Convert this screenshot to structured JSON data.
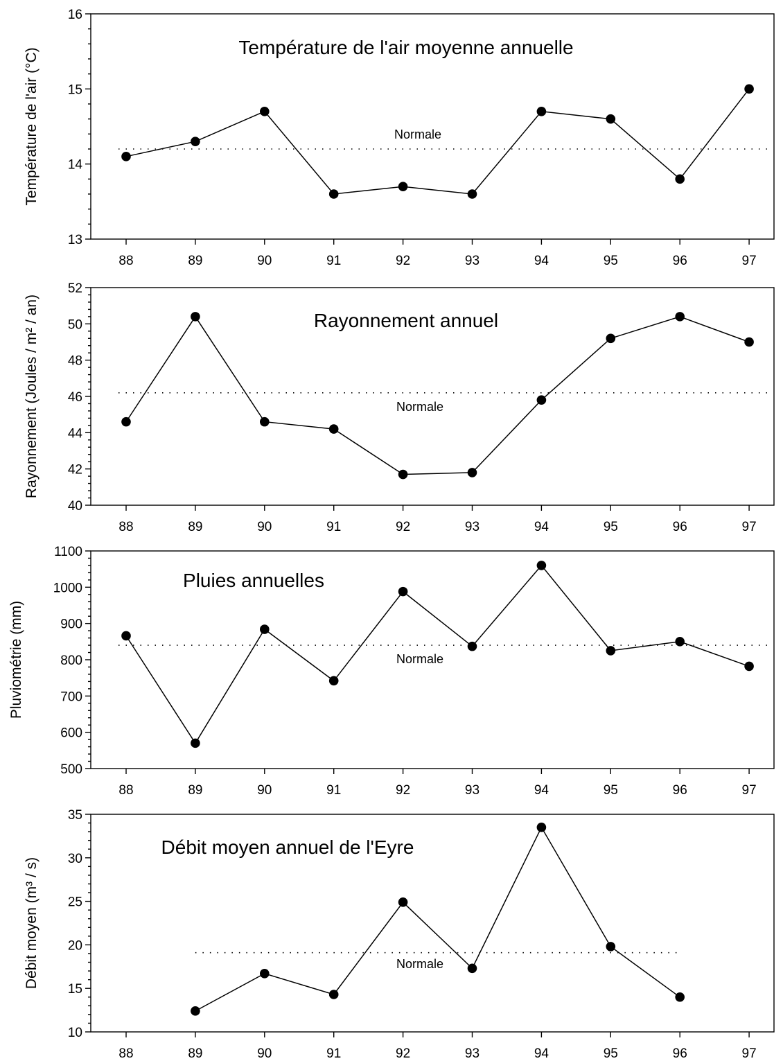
{
  "chart_data": [
    {
      "type": "line",
      "title": "Température de l'air moyenne annuelle",
      "xlabel": "",
      "ylabel": "Température de l'air (°C)",
      "ylim": [
        13,
        16
      ],
      "yticks": [
        "13",
        "14",
        "15",
        "16"
      ],
      "categories": [
        "88",
        "89",
        "90",
        "91",
        "92",
        "93",
        "94",
        "95",
        "96",
        "97"
      ],
      "values": [
        14.1,
        14.3,
        14.7,
        13.6,
        13.7,
        13.6,
        14.7,
        14.6,
        13.8,
        15.0
      ],
      "normal": {
        "label": "Normale",
        "value": 14.2,
        "from": "88",
        "to": "97"
      },
      "grid": false
    },
    {
      "type": "line",
      "title": "Rayonnement annuel",
      "xlabel": "",
      "ylabel": "Rayonnement (Joules / m² / an)",
      "ylim": [
        40,
        52
      ],
      "yticks": [
        "40",
        "42",
        "44",
        "46",
        "48",
        "50",
        "52"
      ],
      "categories": [
        "88",
        "89",
        "90",
        "91",
        "92",
        "93",
        "94",
        "95",
        "96",
        "97"
      ],
      "values": [
        44.6,
        50.4,
        44.6,
        44.2,
        41.7,
        41.8,
        45.8,
        49.2,
        50.4,
        49.0
      ],
      "normal": {
        "label": "Normale",
        "value": 46.2,
        "from": "88",
        "to": "97"
      },
      "grid": false
    },
    {
      "type": "line",
      "title": "Pluies annuelles",
      "xlabel": "",
      "ylabel": "Pluviométrie (mm)",
      "ylim": [
        500,
        1100
      ],
      "yticks": [
        "500",
        "600",
        "700",
        "800",
        "900",
        "1000",
        "1100"
      ],
      "categories": [
        "88",
        "89",
        "90",
        "91",
        "92",
        "93",
        "94",
        "95",
        "96",
        "97"
      ],
      "values": [
        866,
        570,
        884,
        742,
        988,
        837,
        1060,
        825,
        850,
        782
      ],
      "normal": {
        "label": "Normale",
        "value": 840,
        "from": "88",
        "to": "97"
      },
      "grid": false
    },
    {
      "type": "line",
      "title": "Débit moyen annuel de l'Eyre",
      "xlabel": "",
      "ylabel": "Débit moyen (m³ / s)",
      "ylim": [
        10,
        35
      ],
      "yticks": [
        "10",
        "15",
        "20",
        "25",
        "30",
        "35"
      ],
      "categories": [
        "88",
        "89",
        "90",
        "91",
        "92",
        "93",
        "94",
        "95",
        "96",
        "97"
      ],
      "values": [
        null,
        12.4,
        16.7,
        14.3,
        24.9,
        17.3,
        33.5,
        19.8,
        14.0,
        null
      ],
      "normal": {
        "label": "Normale",
        "value": 19.1,
        "from": "89",
        "to": "96"
      },
      "grid": false
    }
  ]
}
